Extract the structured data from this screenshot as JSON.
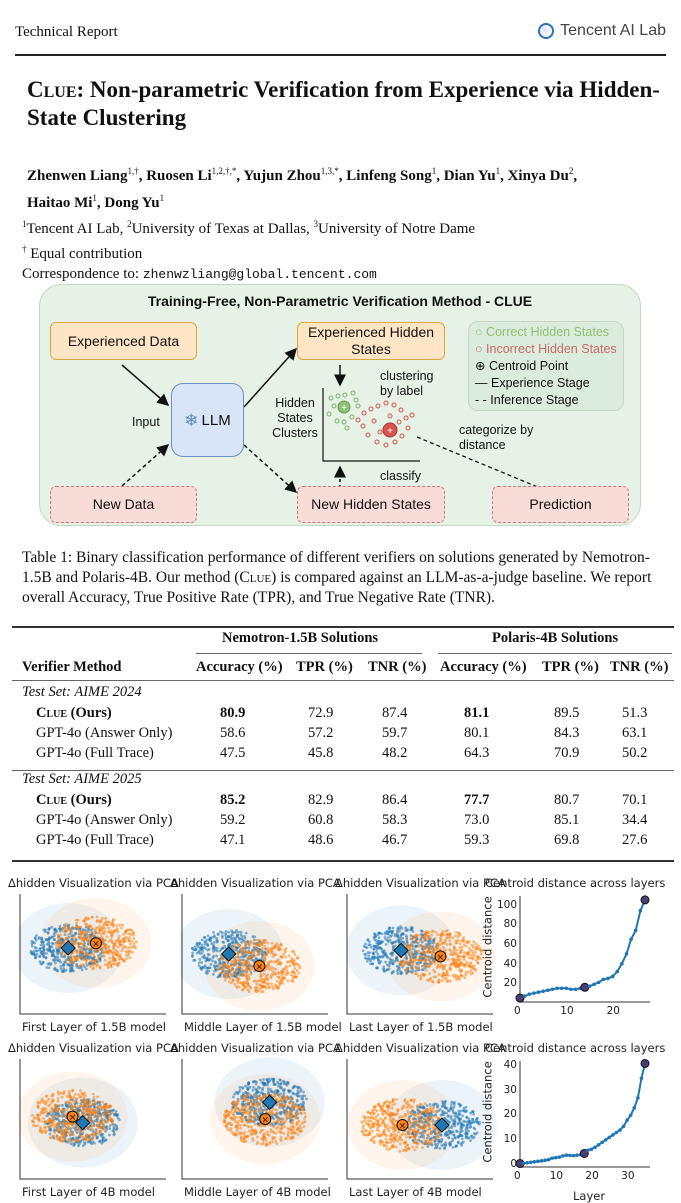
{
  "header": {
    "left": "Technical Report",
    "right": "Tencent AI Lab",
    "logo_icon": "tencent-ai-lab-logo"
  },
  "paper": {
    "title_sc": "Clue",
    "title_rest": ": Non-parametric Verification from Experience via Hidden-State Clustering",
    "authors": [
      {
        "name": "Zhenwen Liang",
        "sup": "1,†"
      },
      {
        "name": "Ruosen Li",
        "sup": "1,2,†,*"
      },
      {
        "name": "Yujun Zhou",
        "sup": "1,3,*"
      },
      {
        "name": "Linfeng Song",
        "sup": "1"
      },
      {
        "name": "Dian Yu",
        "sup": "1"
      },
      {
        "name": "Xinya Du",
        "sup": "2"
      },
      {
        "name": "Haitao Mi",
        "sup": "1"
      },
      {
        "name": "Dong Yu",
        "sup": "1"
      }
    ],
    "affiliations": [
      {
        "sup": "1",
        "name": "Tencent AI Lab"
      },
      {
        "sup": "2",
        "name": "University of Texas at Dallas"
      },
      {
        "sup": "3",
        "name": "University of Notre Dame"
      }
    ],
    "equal_contribution": "Equal contribution",
    "equal_sup": "†",
    "correspondence_label": "Correspondence to:",
    "correspondence_email": "zhenwzliang@global.tencent.com"
  },
  "diagram": {
    "title": "Training-Free, Non-Parametric Verification Method - CLUE",
    "experienced_data": "Experienced Data",
    "new_data": "New Data",
    "input_label": "Input",
    "llm": "LLM",
    "experienced_hidden_states": "Experienced Hidden States",
    "new_hidden_states": "New Hidden States",
    "clustering_label": "clustering by label",
    "clusters_axis_label": "Hidden States Clusters",
    "classify_label": "classify",
    "categorize_label": "categorize by distance",
    "prediction": "Prediction",
    "legend": {
      "correct": "Correct Hidden States",
      "incorrect": "Incorrect Hidden States",
      "centroid": "Centroid Point",
      "experience": "Experience Stage",
      "inference": "Inference Stage"
    },
    "colors": {
      "correct": "#7fb069",
      "incorrect": "#d9534f",
      "bg": "#e5f2e5"
    }
  },
  "table": {
    "caption_prefix": "Table 1: Binary classification performance of different verifiers on solutions generated by Nemotron-1.5B and Polaris-4B. Our method (",
    "caption_sc": "Clue",
    "caption_suffix": ") is compared against an LLM-as-a-judge baseline. We report overall Accuracy, True Positive Rate (TPR), and True Negative Rate (TNR).",
    "group_headers": [
      "Nemotron-1.5B Solutions",
      "Polaris-4B Solutions"
    ],
    "method_header": "Verifier Method",
    "columns": [
      "Accuracy (%)",
      "TPR (%)",
      "TNR (%)",
      "Accuracy (%)",
      "TPR (%)",
      "TNR (%)"
    ],
    "sections": [
      {
        "label": "Test Set: AIME 2024",
        "rows": [
          {
            "method": "Clue (Ours)",
            "values": [
              "80.9",
              "72.9",
              "87.4",
              "81.1",
              "89.5",
              "51.3"
            ],
            "bold": [
              0,
              3
            ]
          },
          {
            "method": "GPT-4o (Answer Only)",
            "values": [
              "58.6",
              "57.2",
              "59.7",
              "80.1",
              "84.3",
              "63.1"
            ]
          },
          {
            "method": "GPT-4o (Full Trace)",
            "values": [
              "47.5",
              "45.8",
              "48.2",
              "64.3",
              "70.9",
              "50.2"
            ]
          }
        ]
      },
      {
        "label": "Test Set: AIME 2025",
        "rows": [
          {
            "method": "Clue (Ours)",
            "values": [
              "85.2",
              "82.9",
              "86.4",
              "77.7",
              "80.7",
              "70.1"
            ],
            "bold": [
              0,
              3
            ]
          },
          {
            "method": "GPT-4o (Answer Only)",
            "values": [
              "59.2",
              "60.8",
              "58.3",
              "73.0",
              "85.1",
              "34.4"
            ]
          },
          {
            "method": "GPT-4o (Full Trace)",
            "values": [
              "47.1",
              "48.6",
              "46.7",
              "59.3",
              "69.8",
              "27.6"
            ]
          }
        ]
      }
    ]
  },
  "chart_data": [
    {
      "type": "scatter",
      "title": "Δhidden Visualization via PCA",
      "xlabel": "First Layer of 1.5B model",
      "series": [
        {
          "name": "correct",
          "color": "#1f77b4"
        },
        {
          "name": "incorrect",
          "color": "#ff7f0e"
        }
      ],
      "centroids": {
        "correct": [
          0.33,
          0.45
        ],
        "incorrect": [
          0.52,
          0.41
        ]
      }
    },
    {
      "type": "scatter",
      "title": "Δhidden Visualization via PCA",
      "xlabel": "Middle Layer of 1.5B model",
      "series": [
        {
          "name": "correct",
          "color": "#1f77b4"
        },
        {
          "name": "incorrect",
          "color": "#ff7f0e"
        }
      ],
      "centroids": {
        "correct": [
          0.32,
          0.5
        ],
        "incorrect": [
          0.53,
          0.6
        ]
      }
    },
    {
      "type": "scatter",
      "title": "Δhidden Visualization via PCA",
      "xlabel": "Last Layer of 1.5B model",
      "series": [
        {
          "name": "correct",
          "color": "#1f77b4"
        },
        {
          "name": "incorrect",
          "color": "#ff7f0e"
        }
      ],
      "centroids": {
        "correct": [
          0.37,
          0.47
        ],
        "incorrect": [
          0.64,
          0.52
        ]
      }
    },
    {
      "type": "line",
      "title": "Centroid distance across layers",
      "xlabel": "",
      "ylabel": "Centroid distance",
      "x": [
        0,
        1,
        2,
        3,
        4,
        5,
        6,
        7,
        8,
        9,
        10,
        11,
        12,
        13,
        14,
        15,
        16,
        17,
        18,
        19,
        20,
        21,
        22,
        23,
        24,
        25,
        26,
        27
      ],
      "values": [
        6,
        8,
        10,
        11,
        12,
        13,
        14,
        15,
        16,
        16,
        16,
        15,
        15,
        16,
        17,
        18,
        20,
        22,
        25,
        26,
        28,
        33,
        41,
        51,
        66,
        75,
        95,
        106
      ],
      "highlighted": [
        0,
        14,
        27
      ],
      "xticks": [
        0,
        10,
        20
      ],
      "yticks": [
        20,
        40,
        60,
        80,
        100
      ],
      "ylim": [
        2,
        110
      ]
    },
    {
      "type": "scatter",
      "title": "Δhidden Visualization via PCA",
      "xlabel": "First Layer of 4B model",
      "series": [
        {
          "name": "correct",
          "color": "#1f77b4"
        },
        {
          "name": "incorrect",
          "color": "#ff7f0e"
        }
      ],
      "centroids": {
        "correct": [
          0.43,
          0.53
        ],
        "incorrect": [
          0.36,
          0.48
        ]
      }
    },
    {
      "type": "scatter",
      "title": "Δhidden Visualization via PCA",
      "xlabel": "Middle Layer of 4B model",
      "series": [
        {
          "name": "correct",
          "color": "#1f77b4"
        },
        {
          "name": "incorrect",
          "color": "#ff7f0e"
        }
      ],
      "centroids": {
        "correct": [
          0.6,
          0.36
        ],
        "incorrect": [
          0.57,
          0.5
        ]
      }
    },
    {
      "type": "scatter",
      "title": "Δhidden Visualization via PCA",
      "xlabel": "Last Layer of 4B model",
      "series": [
        {
          "name": "correct",
          "color": "#1f77b4"
        },
        {
          "name": "incorrect",
          "color": "#ff7f0e"
        }
      ],
      "centroids": {
        "correct": [
          0.65,
          0.55
        ],
        "incorrect": [
          0.38,
          0.55
        ]
      }
    },
    {
      "type": "line",
      "title": "Centroid distance across layers",
      "xlabel": "Layer",
      "ylabel": "Centroid distance",
      "x": [
        0,
        1,
        2,
        3,
        4,
        5,
        6,
        7,
        8,
        9,
        10,
        11,
        12,
        13,
        14,
        15,
        16,
        17,
        18,
        19,
        20,
        21,
        22,
        23,
        24,
        25,
        26,
        27,
        28,
        29,
        30,
        31,
        32,
        33,
        34,
        35
      ],
      "values": [
        0.4,
        0.5,
        0.7,
        0.9,
        1.1,
        1.3,
        1.5,
        1.7,
        2,
        2.6,
        2.8,
        3,
        3.5,
        3.8,
        3.7,
        3.6,
        3.8,
        4,
        4.5,
        5.8,
        6.2,
        7,
        8,
        9,
        10,
        11,
        12,
        13,
        14,
        15.5,
        18,
        20,
        23,
        27,
        35,
        41
      ],
      "highlighted": [
        0,
        18,
        35
      ],
      "xticks": [
        0,
        10,
        20,
        30
      ],
      "yticks": [
        0,
        10,
        20,
        30,
        40
      ],
      "ylim": [
        -1,
        42
      ]
    }
  ]
}
